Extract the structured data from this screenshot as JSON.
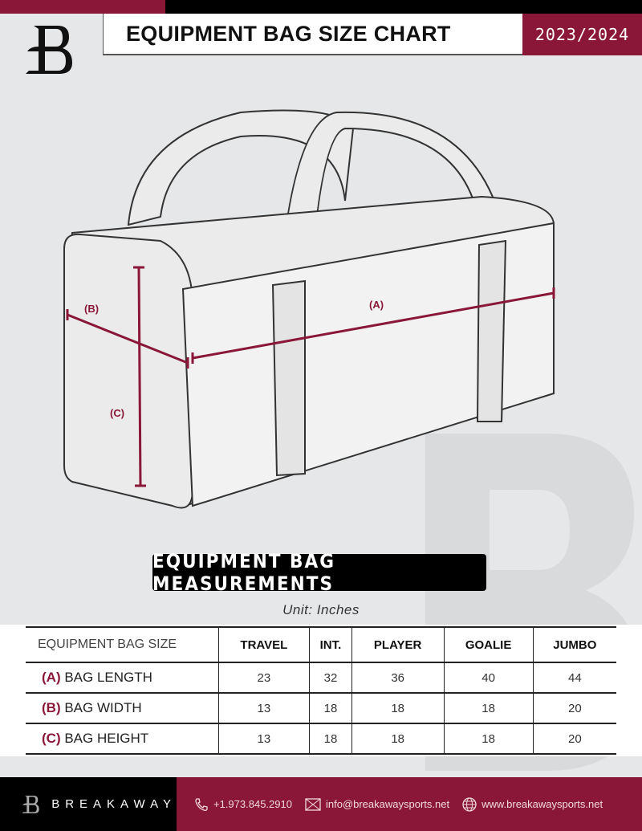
{
  "header": {
    "title": "EQUIPMENT BAG SIZE CHART",
    "season": "2023/2024"
  },
  "diagram": {
    "label_a": "(A)",
    "label_b": "(B)",
    "label_c": "(C)"
  },
  "measurements": {
    "title": "EQUIPMENT BAG MEASUREMENTS",
    "unit": "Unit: Inches"
  },
  "table": {
    "corner": "EQUIPMENT BAG SIZE",
    "columns": [
      "TRAVEL",
      "INT.",
      "PLAYER",
      "GOALIE",
      "JUMBO"
    ],
    "rows": [
      {
        "tag": "(A)",
        "label": "BAG LENGTH",
        "values": [
          "23",
          "32",
          "36",
          "40",
          "44"
        ]
      },
      {
        "tag": "(B)",
        "label": "BAG WIDTH",
        "values": [
          "13",
          "18",
          "18",
          "18",
          "20"
        ]
      },
      {
        "tag": "(C)",
        "label": "BAG HEIGHT",
        "values": [
          "13",
          "18",
          "18",
          "18",
          "20"
        ]
      }
    ]
  },
  "footer": {
    "brand": "BREAKAWAY",
    "phone": "+1.973.845.2910",
    "email": "info@breakawaysports.net",
    "website": "www.breakawaysports.net"
  },
  "colors": {
    "accent": "#8a1737",
    "background": "#e6e7e8"
  }
}
